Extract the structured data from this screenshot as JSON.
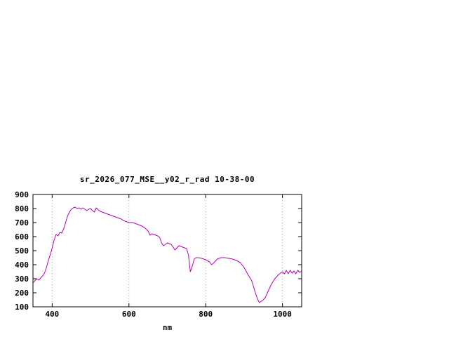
{
  "page": {
    "background": "#ffffff"
  },
  "chart_data": {
    "type": "line",
    "title": "sr_2026_077_MSE__y02_r_rad 10-38-00",
    "xlabel": "nm",
    "ylabel": "",
    "xlim": [
      350,
      1050
    ],
    "ylim": [
      100,
      900
    ],
    "x_ticks": [
      400,
      600,
      800,
      1000
    ],
    "y_ticks": [
      100,
      200,
      300,
      400,
      500,
      600,
      700,
      800,
      900
    ],
    "grid": "vertical-dotted",
    "legend": "none",
    "line_color": "#b300b3",
    "axis_color": "#000000",
    "grid_color": "#a0a0a0",
    "series": [
      {
        "name": "sr_2026_077_MSE__y02_r_rad",
        "points": [
          [
            350,
            270
          ],
          [
            355,
            285
          ],
          [
            360,
            300
          ],
          [
            365,
            290
          ],
          [
            370,
            305
          ],
          [
            375,
            320
          ],
          [
            380,
            340
          ],
          [
            385,
            380
          ],
          [
            390,
            430
          ],
          [
            395,
            470
          ],
          [
            400,
            520
          ],
          [
            405,
            575
          ],
          [
            410,
            615
          ],
          [
            415,
            605
          ],
          [
            420,
            630
          ],
          [
            425,
            625
          ],
          [
            430,
            655
          ],
          [
            435,
            700
          ],
          [
            440,
            745
          ],
          [
            445,
            775
          ],
          [
            450,
            795
          ],
          [
            455,
            805
          ],
          [
            460,
            810
          ],
          [
            465,
            800
          ],
          [
            470,
            805
          ],
          [
            475,
            795
          ],
          [
            480,
            805
          ],
          [
            485,
            795
          ],
          [
            490,
            785
          ],
          [
            495,
            795
          ],
          [
            500,
            800
          ],
          [
            505,
            785
          ],
          [
            510,
            775
          ],
          [
            515,
            805
          ],
          [
            520,
            790
          ],
          [
            525,
            780
          ],
          [
            530,
            775
          ],
          [
            535,
            770
          ],
          [
            540,
            765
          ],
          [
            545,
            760
          ],
          [
            550,
            755
          ],
          [
            555,
            750
          ],
          [
            560,
            745
          ],
          [
            565,
            740
          ],
          [
            570,
            735
          ],
          [
            575,
            730
          ],
          [
            580,
            725
          ],
          [
            585,
            715
          ],
          [
            590,
            710
          ],
          [
            595,
            705
          ],
          [
            600,
            700
          ],
          [
            610,
            700
          ],
          [
            620,
            690
          ],
          [
            630,
            680
          ],
          [
            640,
            665
          ],
          [
            650,
            640
          ],
          [
            655,
            610
          ],
          [
            660,
            620
          ],
          [
            665,
            615
          ],
          [
            670,
            610
          ],
          [
            675,
            605
          ],
          [
            680,
            595
          ],
          [
            685,
            555
          ],
          [
            690,
            535
          ],
          [
            695,
            545
          ],
          [
            700,
            555
          ],
          [
            705,
            550
          ],
          [
            710,
            545
          ],
          [
            715,
            525
          ],
          [
            720,
            505
          ],
          [
            725,
            520
          ],
          [
            730,
            535
          ],
          [
            735,
            530
          ],
          [
            740,
            525
          ],
          [
            745,
            520
          ],
          [
            750,
            515
          ],
          [
            755,
            470
          ],
          [
            760,
            350
          ],
          [
            765,
            390
          ],
          [
            770,
            440
          ],
          [
            775,
            450
          ],
          [
            780,
            450
          ],
          [
            790,
            445
          ],
          [
            800,
            435
          ],
          [
            810,
            420
          ],
          [
            815,
            400
          ],
          [
            820,
            410
          ],
          [
            825,
            425
          ],
          [
            830,
            440
          ],
          [
            840,
            450
          ],
          [
            850,
            450
          ],
          [
            860,
            445
          ],
          [
            870,
            440
          ],
          [
            880,
            430
          ],
          [
            890,
            415
          ],
          [
            900,
            380
          ],
          [
            910,
            330
          ],
          [
            920,
            285
          ],
          [
            930,
            195
          ],
          [
            935,
            155
          ],
          [
            940,
            130
          ],
          [
            945,
            140
          ],
          [
            950,
            150
          ],
          [
            955,
            165
          ],
          [
            960,
            195
          ],
          [
            970,
            255
          ],
          [
            980,
            300
          ],
          [
            990,
            330
          ],
          [
            1000,
            350
          ],
          [
            1005,
            335
          ],
          [
            1010,
            360
          ],
          [
            1015,
            335
          ],
          [
            1020,
            360
          ],
          [
            1025,
            340
          ],
          [
            1030,
            355
          ],
          [
            1035,
            335
          ],
          [
            1040,
            360
          ],
          [
            1045,
            345
          ],
          [
            1050,
            355
          ]
        ]
      }
    ]
  }
}
